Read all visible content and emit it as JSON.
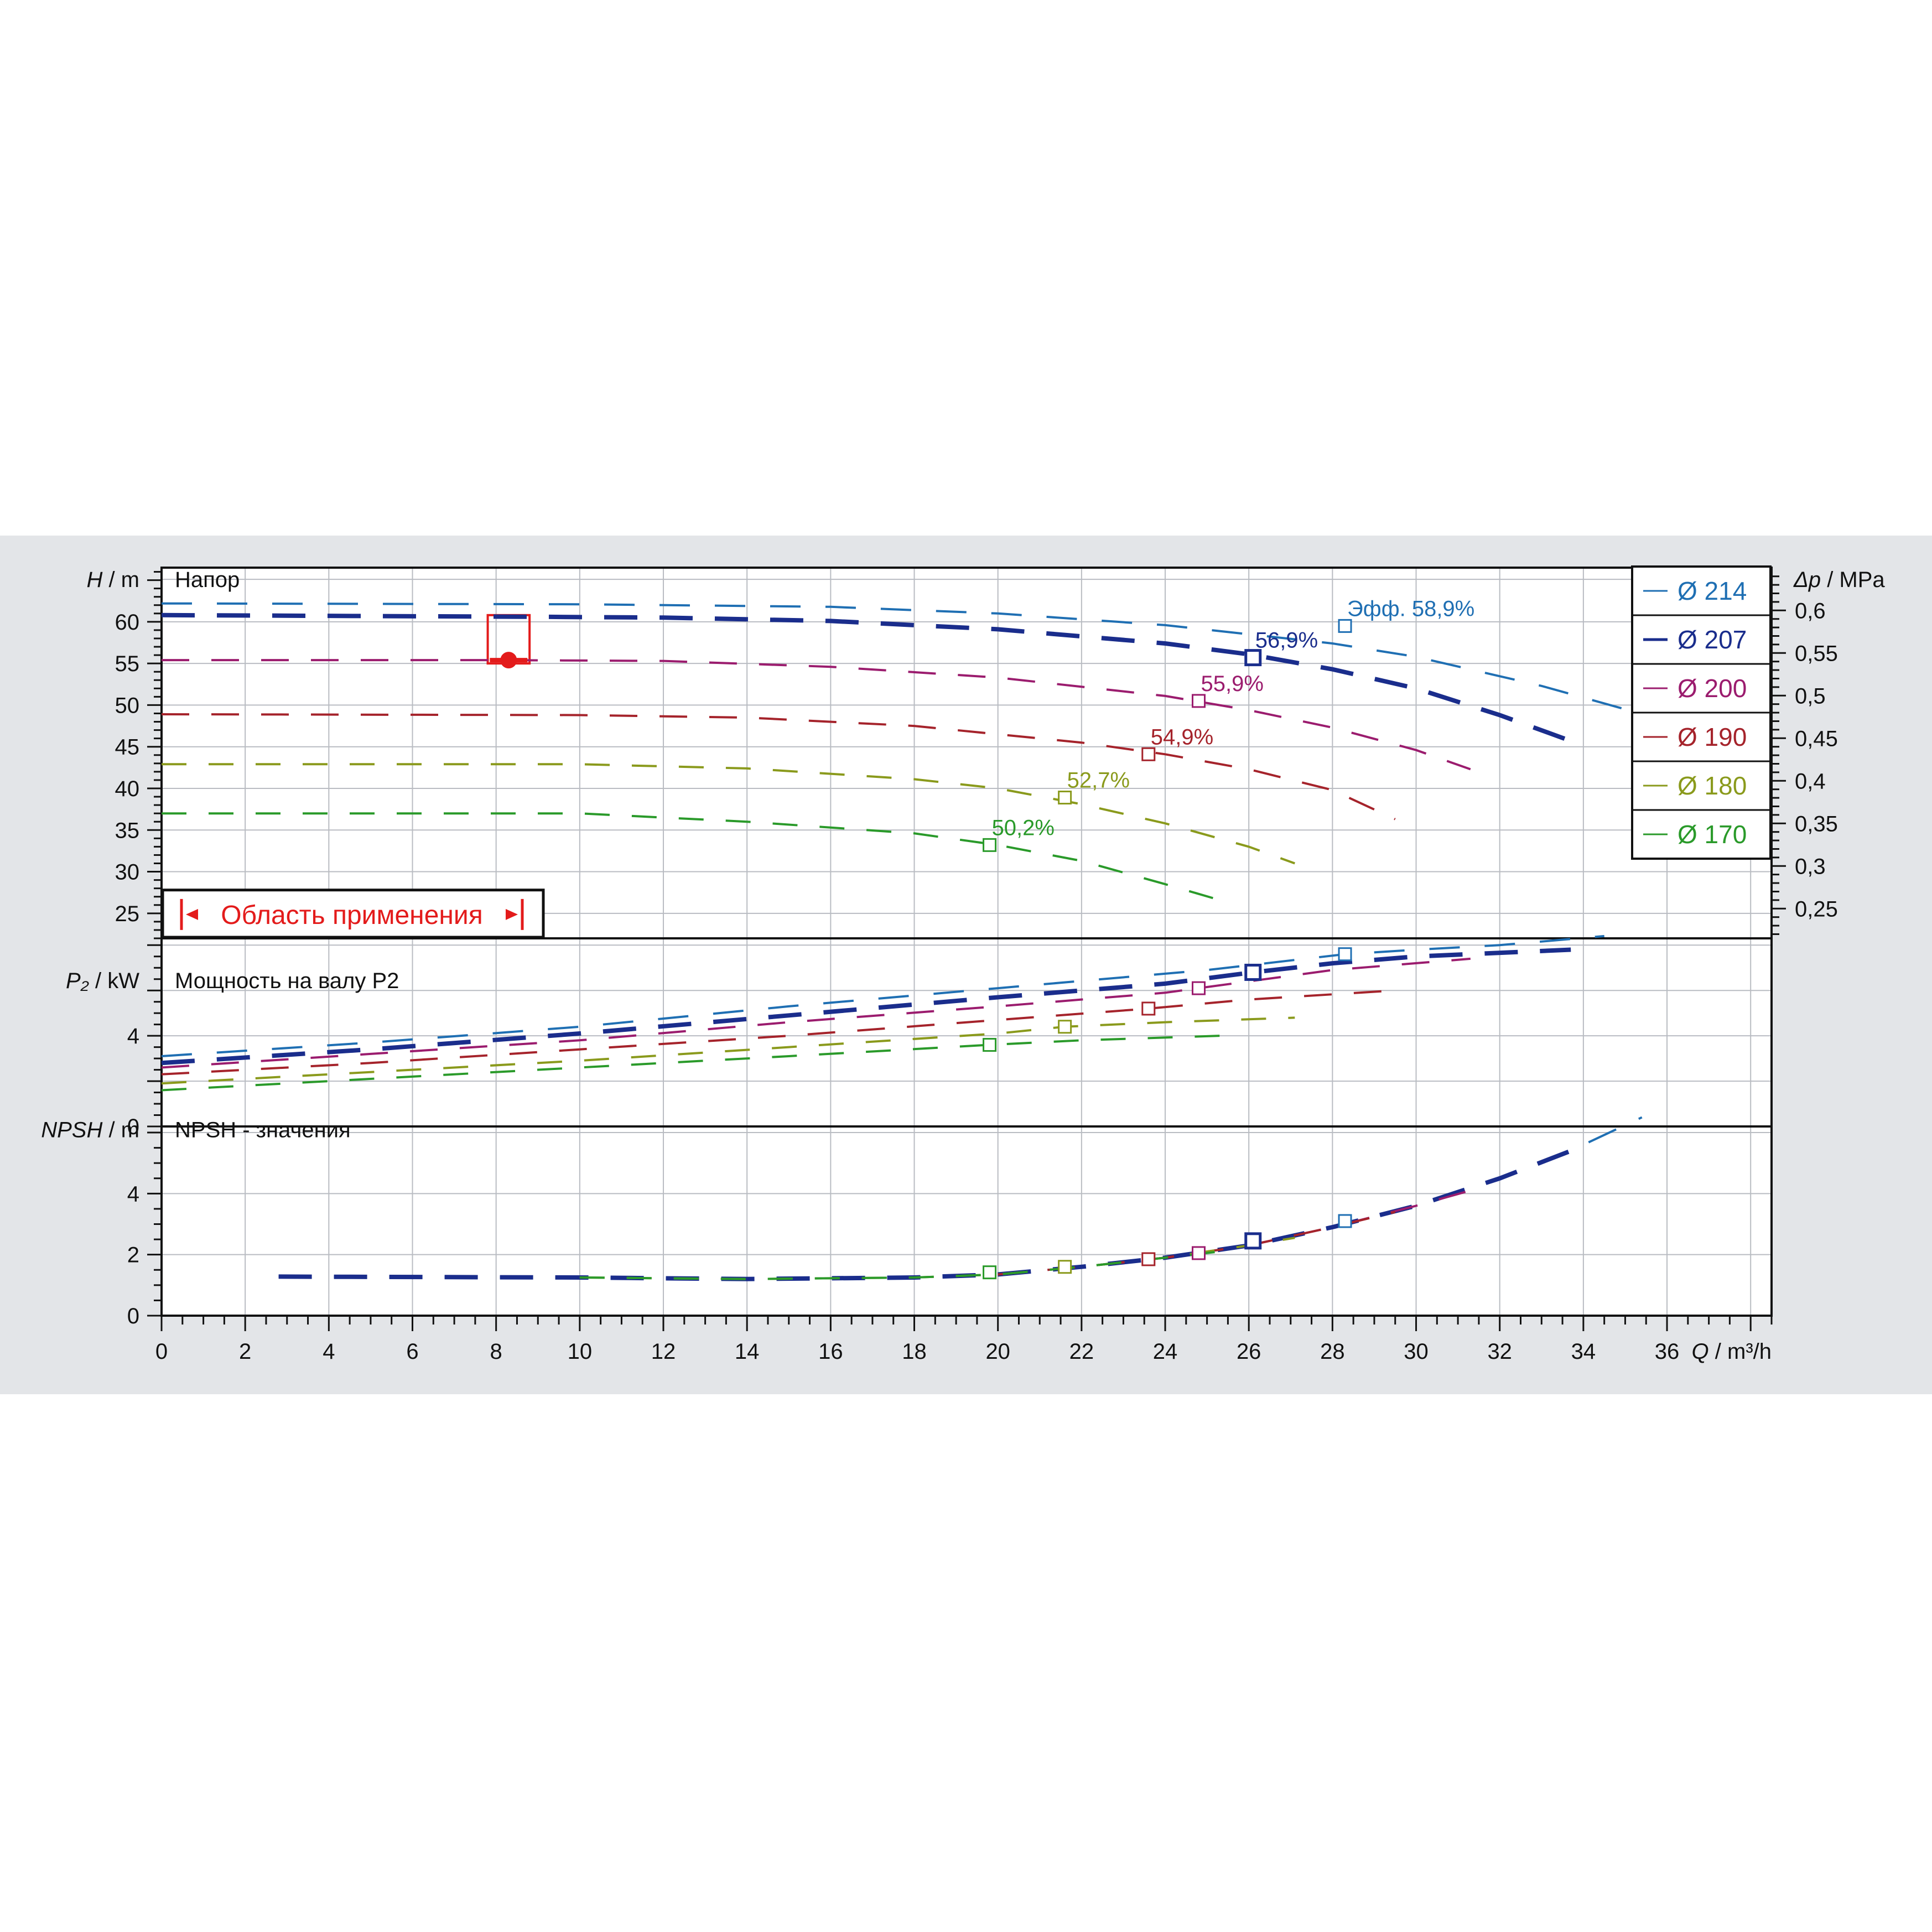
{
  "chart_data": {
    "type": "line",
    "x_axis": {
      "label_symbol": "Q",
      "label_unit": "/ m³/h",
      "ticks": [
        "0",
        "2",
        "4",
        "6",
        "8",
        "10",
        "12",
        "14",
        "16",
        "18",
        "20",
        "22",
        "24",
        "26",
        "28",
        "30",
        "32",
        "34",
        "36"
      ],
      "range": [
        0,
        38.5
      ]
    },
    "head_panel": {
      "label": "Напор",
      "y_symbol": "H",
      "y_unit": "/ m",
      "y_range": [
        22,
        66.5
      ],
      "y_ticks": [
        "25",
        "30",
        "35",
        "40",
        "45",
        "50",
        "55",
        "60"
      ],
      "right_axis": {
        "symbol": "Δp",
        "unit": "/ MPa",
        "ticks": [
          "0,25",
          "0,3",
          "0,35",
          "0,4",
          "0,45",
          "0,5",
          "0,55",
          "0,6"
        ]
      },
      "series": [
        {
          "name": "Ø 214",
          "color": "#1f6fb3",
          "points": [
            [
              0,
              62.2
            ],
            [
              10,
              62.1
            ],
            [
              16,
              61.8
            ],
            [
              20,
              61.0
            ],
            [
              24,
              59.6
            ],
            [
              28,
              57.4
            ],
            [
              30,
              55.8
            ],
            [
              33,
              52.3
            ],
            [
              35,
              49.5
            ]
          ]
        },
        {
          "name": "Ø 207",
          "color": "#1a2d8c",
          "points": [
            [
              0,
              60.8
            ],
            [
              9,
              60.6
            ],
            [
              12,
              60.5
            ],
            [
              16,
              60.1
            ],
            [
              20,
              59.1
            ],
            [
              24,
              57.4
            ],
            [
              26,
              56.1
            ],
            [
              28,
              54.3
            ],
            [
              30,
              52.0
            ],
            [
              32,
              48.8
            ],
            [
              33.7,
              45.7
            ]
          ]
        },
        {
          "name": "Ø 200",
          "color": "#9b1c6e",
          "points": [
            [
              0,
              55.4
            ],
            [
              8,
              55.4
            ],
            [
              12,
              55.3
            ],
            [
              16,
              54.6
            ],
            [
              20,
              53.3
            ],
            [
              24,
              51.1
            ],
            [
              26,
              49.4
            ],
            [
              28,
              47.3
            ],
            [
              30,
              44.6
            ],
            [
              31.3,
              42.3
            ]
          ]
        },
        {
          "name": "Ø 190",
          "color": "#a5232b",
          "points": [
            [
              0,
              48.9
            ],
            [
              10,
              48.8
            ],
            [
              14,
              48.5
            ],
            [
              18,
              47.5
            ],
            [
              22,
              45.5
            ],
            [
              24,
              44.1
            ],
            [
              26,
              42.3
            ],
            [
              28,
              39.8
            ],
            [
              29.5,
              36.3
            ]
          ]
        },
        {
          "name": "Ø 180",
          "color": "#8a9a1c",
          "points": [
            [
              0,
              42.9
            ],
            [
              10,
              42.9
            ],
            [
              14,
              42.4
            ],
            [
              18,
              41.1
            ],
            [
              20,
              40.0
            ],
            [
              22,
              38.1
            ],
            [
              24,
              35.8
            ],
            [
              26,
              33.0
            ],
            [
              27.1,
              31.0
            ]
          ]
        },
        {
          "name": "Ø 170",
          "color": "#2a9a2a",
          "points": [
            [
              0,
              37.0
            ],
            [
              10,
              37.0
            ],
            [
              14,
              36.0
            ],
            [
              18,
              34.6
            ],
            [
              20,
              33.2
            ],
            [
              22,
              31.3
            ],
            [
              24,
              28.5
            ],
            [
              25.3,
              26.6
            ]
          ]
        }
      ],
      "efficiency_points": [
        {
          "q": 28.3,
          "h": 59.5,
          "label": "Эфф.  58,9%",
          "color": "#1f6fb3"
        },
        {
          "q": 26.1,
          "h": 55.7,
          "label": "56,9%",
          "color": "#1a2d8c"
        },
        {
          "q": 24.8,
          "h": 50.5,
          "label": "55,9%",
          "color": "#9b1c6e"
        },
        {
          "q": 23.6,
          "h": 44.1,
          "label": "54,9%",
          "color": "#a5232b"
        },
        {
          "q": 21.6,
          "h": 38.9,
          "label": "52,7%",
          "color": "#8a9a1c"
        },
        {
          "q": 19.8,
          "h": 33.2,
          "label": "50,2%",
          "color": "#2a9a2a"
        }
      ],
      "operating_point": {
        "q": 8.3,
        "h": 55.4,
        "color": "#e31b1b"
      },
      "application_range": {
        "text": "Область применения",
        "q_from": 7.8,
        "q_to": 8.8,
        "h_top": 60.8,
        "h_bottom": 55.0
      }
    },
    "power_panel": {
      "label": "Мощность на валу P2",
      "y_symbol": "P₂",
      "y_unit": "/ kW",
      "y_range": [
        0,
        8.3
      ],
      "y_ticks": [
        "0",
        "4"
      ],
      "series": [
        {
          "name": "Ø 214",
          "color": "#1f6fb3",
          "points": [
            [
              0,
              3.1
            ],
            [
              5,
              3.7
            ],
            [
              10,
              4.4
            ],
            [
              15,
              5.3
            ],
            [
              20,
              6.1
            ],
            [
              25,
              6.9
            ],
            [
              28.3,
              7.6
            ],
            [
              30,
              7.8
            ],
            [
              32,
              8.0
            ],
            [
              34.5,
              8.4
            ]
          ]
        },
        {
          "name": "Ø 207",
          "color": "#1a2d8c",
          "points": [
            [
              0,
              2.8
            ],
            [
              5,
              3.4
            ],
            [
              10,
              4.1
            ],
            [
              15,
              4.9
            ],
            [
              20,
              5.7
            ],
            [
              24,
              6.3
            ],
            [
              26.1,
              6.8
            ],
            [
              28,
              7.2
            ],
            [
              30,
              7.5
            ],
            [
              33.7,
              7.8
            ]
          ]
        },
        {
          "name": "Ø 200",
          "color": "#9b1c6e",
          "points": [
            [
              0,
              2.6
            ],
            [
              5,
              3.2
            ],
            [
              10,
              3.8
            ],
            [
              15,
              4.6
            ],
            [
              20,
              5.3
            ],
            [
              24,
              5.9
            ],
            [
              24.8,
              6.1
            ],
            [
              28,
              6.9
            ],
            [
              31.3,
              7.4
            ]
          ]
        },
        {
          "name": "Ø 190",
          "color": "#a5232b",
          "points": [
            [
              0,
              2.3
            ],
            [
              5,
              2.8
            ],
            [
              10,
              3.4
            ],
            [
              15,
              4.0
            ],
            [
              20,
              4.7
            ],
            [
              23.6,
              5.2
            ],
            [
              26,
              5.6
            ],
            [
              29.5,
              6.0
            ]
          ]
        },
        {
          "name": "Ø 180",
          "color": "#8a9a1c",
          "points": [
            [
              0,
              1.9
            ],
            [
              5,
              2.4
            ],
            [
              10,
              2.9
            ],
            [
              15,
              3.5
            ],
            [
              20,
              4.1
            ],
            [
              21.6,
              4.4
            ],
            [
              24,
              4.6
            ],
            [
              27.1,
              4.8
            ]
          ]
        },
        {
          "name": "Ø 170",
          "color": "#2a9a2a",
          "points": [
            [
              0,
              1.6
            ],
            [
              5,
              2.1
            ],
            [
              10,
              2.6
            ],
            [
              15,
              3.1
            ],
            [
              19.8,
              3.6
            ],
            [
              22,
              3.8
            ],
            [
              25.3,
              4.0
            ]
          ]
        }
      ],
      "efficiency_points": [
        {
          "q": 28.3,
          "p": 7.6,
          "color": "#1f6fb3"
        },
        {
          "q": 26.1,
          "p": 6.8,
          "color": "#1a2d8c"
        },
        {
          "q": 24.8,
          "p": 6.1,
          "color": "#9b1c6e"
        },
        {
          "q": 23.6,
          "p": 5.2,
          "color": "#a5232b"
        },
        {
          "q": 21.6,
          "p": 4.4,
          "color": "#8a9a1c"
        },
        {
          "q": 19.8,
          "p": 3.6,
          "color": "#2a9a2a"
        }
      ]
    },
    "npsh_panel": {
      "label": "NPSH - значения",
      "y_symbol": "NPSH",
      "y_unit": "/ m",
      "y_range": [
        0,
        6.2
      ],
      "y_ticks": [
        "0",
        "2",
        "4"
      ],
      "series": [
        {
          "name": "Ø 214",
          "color": "#1f6fb3",
          "points": [
            [
              2.8,
              1.28
            ],
            [
              10,
              1.25
            ],
            [
              14,
              1.2
            ],
            [
              18,
              1.25
            ],
            [
              20,
              1.35
            ],
            [
              22,
              1.6
            ],
            [
              24,
              1.9
            ],
            [
              26,
              2.3
            ],
            [
              28,
              2.9
            ],
            [
              30,
              3.6
            ],
            [
              32,
              4.5
            ],
            [
              34,
              5.6
            ],
            [
              35.4,
              6.5
            ]
          ]
        },
        {
          "name": "Ø 207",
          "color": "#1a2d8c",
          "points": [
            [
              2.8,
              1.28
            ],
            [
              10,
              1.25
            ],
            [
              14,
              1.2
            ],
            [
              18,
              1.25
            ],
            [
              20,
              1.35
            ],
            [
              22,
              1.6
            ],
            [
              24,
              1.9
            ],
            [
              26,
              2.3
            ],
            [
              28,
              2.9
            ],
            [
              30,
              3.6
            ],
            [
              32,
              4.5
            ],
            [
              33.7,
              5.4
            ]
          ]
        },
        {
          "name": "Ø 200",
          "color": "#9b1c6e",
          "points": [
            [
              20,
              1.35
            ],
            [
              22,
              1.6
            ],
            [
              24,
              1.9
            ],
            [
              26,
              2.3
            ],
            [
              28,
              2.9
            ],
            [
              30,
              3.6
            ],
            [
              31.3,
              4.1
            ]
          ]
        },
        {
          "name": "Ø 190",
          "color": "#a5232b",
          "points": [
            [
              20,
              1.35
            ],
            [
              22,
              1.6
            ],
            [
              24,
              1.9
            ],
            [
              26,
              2.3
            ],
            [
              28,
              2.9
            ],
            [
              29.5,
              3.4
            ]
          ]
        },
        {
          "name": "Ø 180",
          "color": "#8a9a1c",
          "points": [
            [
              10,
              1.25
            ],
            [
              14,
              1.2
            ],
            [
              18,
              1.25
            ],
            [
              20,
              1.35
            ],
            [
              22,
              1.6
            ],
            [
              24,
              1.9
            ],
            [
              26,
              2.3
            ],
            [
              27.1,
              2.55
            ]
          ]
        },
        {
          "name": "Ø 170",
          "color": "#2a9a2a",
          "points": [
            [
              10,
              1.25
            ],
            [
              14,
              1.2
            ],
            [
              18,
              1.25
            ],
            [
              20,
              1.35
            ],
            [
              22,
              1.6
            ],
            [
              24,
              1.9
            ],
            [
              25.3,
              2.1
            ]
          ]
        }
      ],
      "efficiency_points": [
        {
          "q": 28.3,
          "v": 3.1,
          "color": "#1f6fb3"
        },
        {
          "q": 26.1,
          "v": 2.45,
          "color": "#1a2d8c"
        },
        {
          "q": 24.8,
          "v": 2.05,
          "color": "#9b1c6e"
        },
        {
          "q": 23.6,
          "v": 1.85,
          "color": "#a5232b"
        },
        {
          "q": 21.6,
          "v": 1.6,
          "color": "#8a9a1c"
        },
        {
          "q": 19.8,
          "v": 1.42,
          "color": "#2a9a2a"
        }
      ]
    },
    "legend": [
      {
        "label": "Ø 214",
        "color": "#1f6fb3"
      },
      {
        "label": "Ø 207",
        "color": "#1a2d8c"
      },
      {
        "label": "Ø 200",
        "color": "#9b1c6e"
      },
      {
        "label": "Ø 190",
        "color": "#a5232b"
      },
      {
        "label": "Ø 180",
        "color": "#8a9a1c"
      },
      {
        "label": "Ø 170",
        "color": "#2a9a2a"
      }
    ],
    "grid": true,
    "legend_placement": "top-right"
  }
}
